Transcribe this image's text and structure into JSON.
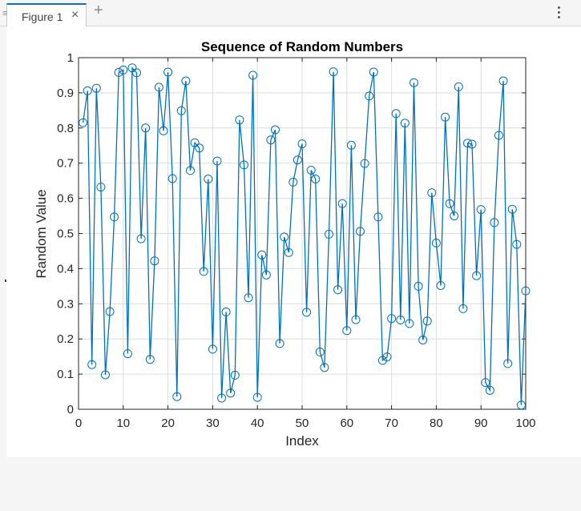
{
  "tab": {
    "label": "Figure 1",
    "grip": "≡",
    "close_icon": "×",
    "add_icon": "+"
  },
  "menu": {
    "icon": "⋮"
  },
  "colors": {
    "series": "#0072bd",
    "accent": "#0e6fc4",
    "grid": "#dcdcdc",
    "axis": "#262626"
  },
  "chart_data": {
    "type": "line",
    "title": "Sequence of Random Numbers",
    "xlabel": "Index",
    "ylabel": "Random Value",
    "xlim": [
      0,
      100
    ],
    "ylim": [
      0,
      1
    ],
    "xticks": [
      0,
      10,
      20,
      30,
      40,
      50,
      60,
      70,
      80,
      90,
      100
    ],
    "yticks": [
      0,
      0.1,
      0.2,
      0.3,
      0.4,
      0.5,
      0.6,
      0.7,
      0.8,
      0.9,
      1
    ],
    "grid": true,
    "marker": "circle",
    "x": [
      1,
      2,
      3,
      4,
      5,
      6,
      7,
      8,
      9,
      10,
      11,
      12,
      13,
      14,
      15,
      16,
      17,
      18,
      19,
      20,
      21,
      22,
      23,
      24,
      25,
      26,
      27,
      28,
      29,
      30,
      31,
      32,
      33,
      34,
      35,
      36,
      37,
      38,
      39,
      40,
      41,
      42,
      43,
      44,
      45,
      46,
      47,
      48,
      49,
      50,
      51,
      52,
      53,
      54,
      55,
      56,
      57,
      58,
      59,
      60,
      61,
      62,
      63,
      64,
      65,
      66,
      67,
      68,
      69,
      70,
      71,
      72,
      73,
      74,
      75,
      76,
      77,
      78,
      79,
      80,
      81,
      82,
      83,
      84,
      85,
      86,
      87,
      88,
      89,
      90,
      91,
      92,
      93,
      94,
      95,
      96,
      97,
      98,
      99,
      100
    ],
    "y": [
      0.815,
      0.906,
      0.127,
      0.913,
      0.632,
      0.098,
      0.278,
      0.547,
      0.958,
      0.965,
      0.158,
      0.971,
      0.957,
      0.485,
      0.8,
      0.142,
      0.422,
      0.916,
      0.792,
      0.959,
      0.656,
      0.036,
      0.849,
      0.934,
      0.679,
      0.758,
      0.743,
      0.392,
      0.655,
      0.171,
      0.706,
      0.032,
      0.277,
      0.046,
      0.097,
      0.823,
      0.695,
      0.317,
      0.95,
      0.034,
      0.439,
      0.382,
      0.766,
      0.795,
      0.187,
      0.49,
      0.446,
      0.646,
      0.709,
      0.755,
      0.276,
      0.68,
      0.655,
      0.163,
      0.119,
      0.498,
      0.96,
      0.34,
      0.585,
      0.224,
      0.751,
      0.255,
      0.506,
      0.699,
      0.891,
      0.959,
      0.547,
      0.139,
      0.149,
      0.258,
      0.841,
      0.254,
      0.814,
      0.244,
      0.929,
      0.35,
      0.197,
      0.251,
      0.616,
      0.473,
      0.352,
      0.831,
      0.585,
      0.55,
      0.917,
      0.286,
      0.757,
      0.754,
      0.38,
      0.568,
      0.076,
      0.054,
      0.531,
      0.779,
      0.934,
      0.13,
      0.569,
      0.469,
      0.012,
      0.337
    ]
  }
}
